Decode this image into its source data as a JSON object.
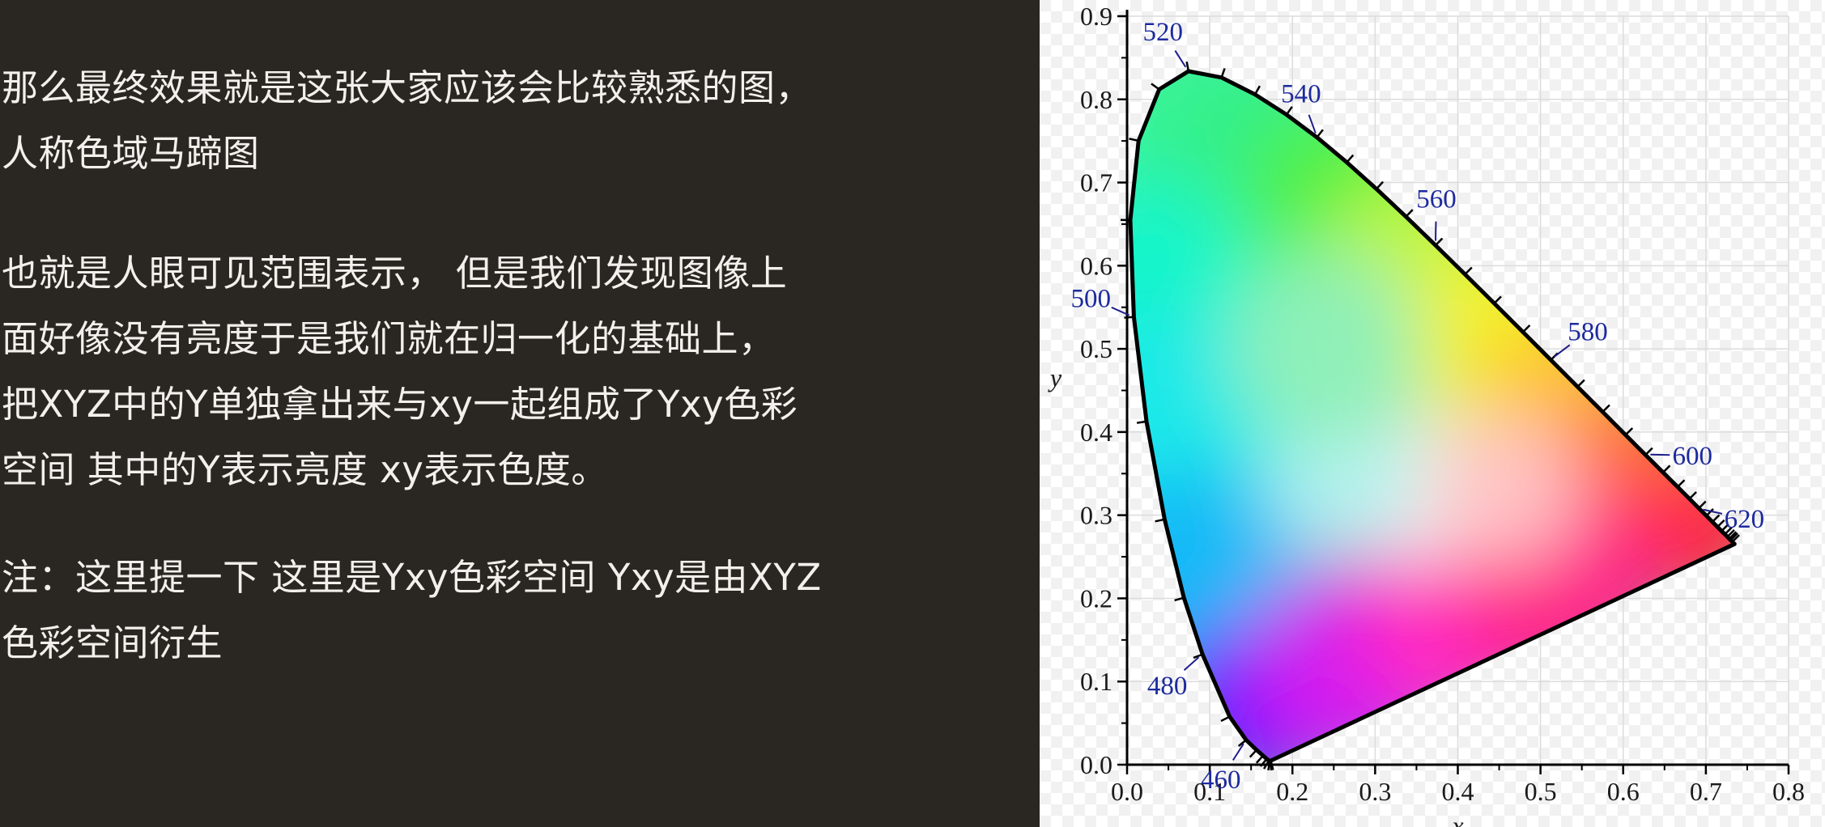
{
  "text_panel": {
    "paragraphs": [
      {
        "lines": [
          "那么最终效果就是这张大家应该会比较熟悉的图，",
          "人称色域马蹄图"
        ]
      },
      {
        "lines": [
          "也就是人眼可见范围表示， 但是我们发现图像上",
          "面好像没有亮度于是我们就在归一化的基础上，",
          "把XYZ中的Y单独拿出来与xy一起组成了Yxy色彩",
          "空间 其中的Y表示亮度 xy表示色度。"
        ]
      },
      {
        "lines": [
          "注：这里提一下 这里是Yxy色彩空间 Yxy是由XYZ",
          "色彩空间衍生"
        ]
      }
    ]
  },
  "chromaticity_diagram": {
    "xlabel": "x",
    "ylabel": "y",
    "xlim": [
      0,
      0.8
    ],
    "ylim": [
      0,
      0.9
    ],
    "x_ticks": [
      {
        "value": 0.0,
        "label": "0.0"
      },
      {
        "value": 0.1,
        "label": "0.1"
      },
      {
        "value": 0.2,
        "label": "0.2"
      },
      {
        "value": 0.3,
        "label": "0.3"
      },
      {
        "value": 0.4,
        "label": "0.4"
      },
      {
        "value": 0.5,
        "label": "0.5"
      },
      {
        "value": 0.6,
        "label": "0.6"
      },
      {
        "value": 0.7,
        "label": "0.7"
      },
      {
        "value": 0.8,
        "label": "0.8"
      }
    ],
    "y_ticks": [
      {
        "value": 0.0,
        "label": "0.0"
      },
      {
        "value": 0.1,
        "label": "0.1"
      },
      {
        "value": 0.2,
        "label": "0.2"
      },
      {
        "value": 0.3,
        "label": "0.3"
      },
      {
        "value": 0.4,
        "label": "0.4"
      },
      {
        "value": 0.5,
        "label": "0.5"
      },
      {
        "value": 0.6,
        "label": "0.6"
      },
      {
        "value": 0.7,
        "label": "0.7"
      },
      {
        "value": 0.8,
        "label": "0.8"
      },
      {
        "value": 0.9,
        "label": "0.9"
      }
    ],
    "grid": true,
    "wavelength_labels": [
      {
        "label": "460",
        "x": 0.144,
        "y": 0.03
      },
      {
        "label": "480",
        "x": 0.091,
        "y": 0.133
      },
      {
        "label": "500",
        "x": 0.008,
        "y": 0.538
      },
      {
        "label": "520",
        "x": 0.074,
        "y": 0.834
      },
      {
        "label": "540",
        "x": 0.23,
        "y": 0.754
      },
      {
        "label": "560",
        "x": 0.373,
        "y": 0.624
      },
      {
        "label": "580",
        "x": 0.512,
        "y": 0.487
      },
      {
        "label": "600",
        "x": 0.627,
        "y": 0.373
      },
      {
        "label": "620",
        "x": 0.691,
        "y": 0.308
      }
    ],
    "spectral_locus": [
      [
        0.1741,
        0.005
      ],
      [
        0.1738,
        0.0049
      ],
      [
        0.1733,
        0.0048
      ],
      [
        0.1726,
        0.0048
      ],
      [
        0.1714,
        0.0051
      ],
      [
        0.1689,
        0.0069
      ],
      [
        0.1644,
        0.0109
      ],
      [
        0.1566,
        0.0177
      ],
      [
        0.144,
        0.0297
      ],
      [
        0.1241,
        0.0578
      ],
      [
        0.0913,
        0.1327
      ],
      [
        0.0687,
        0.2007
      ],
      [
        0.0454,
        0.295
      ],
      [
        0.0235,
        0.4127
      ],
      [
        0.0082,
        0.5384
      ],
      [
        0.0039,
        0.6548
      ],
      [
        0.0139,
        0.7502
      ],
      [
        0.0389,
        0.812
      ],
      [
        0.0743,
        0.8338
      ],
      [
        0.1142,
        0.8262
      ],
      [
        0.1547,
        0.8059
      ],
      [
        0.1929,
        0.7816
      ],
      [
        0.2296,
        0.7543
      ],
      [
        0.2658,
        0.7243
      ],
      [
        0.3016,
        0.6923
      ],
      [
        0.3373,
        0.6589
      ],
      [
        0.3731,
        0.6245
      ],
      [
        0.4087,
        0.5896
      ],
      [
        0.4441,
        0.5547
      ],
      [
        0.4788,
        0.5202
      ],
      [
        0.5125,
        0.4866
      ],
      [
        0.5448,
        0.4544
      ],
      [
        0.5752,
        0.4242
      ],
      [
        0.6029,
        0.3965
      ],
      [
        0.627,
        0.3725
      ],
      [
        0.6482,
        0.3514
      ],
      [
        0.6658,
        0.334
      ],
      [
        0.6801,
        0.3197
      ],
      [
        0.6915,
        0.3083
      ],
      [
        0.7006,
        0.2993
      ],
      [
        0.7079,
        0.292
      ],
      [
        0.714,
        0.2859
      ],
      [
        0.719,
        0.2809
      ],
      [
        0.723,
        0.277
      ],
      [
        0.726,
        0.274
      ],
      [
        0.7283,
        0.2717
      ],
      [
        0.73,
        0.27
      ],
      [
        0.732,
        0.268
      ],
      [
        0.7347,
        0.2653
      ]
    ]
  }
}
